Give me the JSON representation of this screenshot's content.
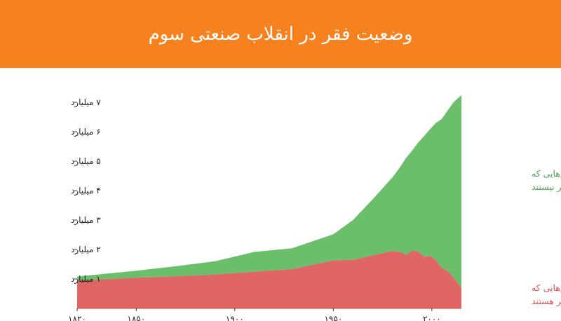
{
  "header": {
    "title": "وضعیت فقر در انقلاب صنعتی سوم"
  },
  "colors": {
    "header": "#f5821f",
    "not_poor": "#6bbf6b",
    "poor": "#e06666",
    "axis": "#222222"
  },
  "chart_data": {
    "type": "area",
    "stacked": true,
    "title": "وضعیت فقر در انقلاب صنعتی سوم",
    "x": [
      1820,
      1850,
      1870,
      1890,
      1910,
      1929,
      1950,
      1960,
      1970,
      1980,
      1984,
      1987,
      1990,
      1993,
      1996,
      1999,
      2002,
      2005,
      2008,
      2011,
      2015
    ],
    "series": [
      {
        "name": "تعداد آدم‌هایی که فقیر هستند",
        "values": [
          0.94,
          1.04,
          1.09,
          1.15,
          1.25,
          1.33,
          1.63,
          1.65,
          1.8,
          1.95,
          1.91,
          1.82,
          1.96,
          1.93,
          1.75,
          1.78,
          1.65,
          1.38,
          1.27,
          1.05,
          0.7
        ]
      },
      {
        "name": "تعداد آدم‌هایی که فقیر نیستند",
        "values": [
          0.14,
          0.24,
          0.34,
          0.45,
          0.67,
          0.71,
          0.89,
          1.35,
          1.91,
          2.5,
          2.9,
          3.3,
          3.4,
          3.7,
          4.1,
          4.3,
          4.65,
          5.05,
          5.45,
          5.95,
          6.55
        ]
      }
    ],
    "x_ticks": [
      {
        "value": 1820,
        "label": "۱۸۲۰"
      },
      {
        "value": 1850,
        "label": "۱۸۵۰"
      },
      {
        "value": 1900,
        "label": "۱۹۰۰"
      },
      {
        "value": 1950,
        "label": "۱۹۵۰"
      },
      {
        "value": 2000,
        "label": "۲۰۰۰"
      }
    ],
    "y_ticks": [
      {
        "value": 1,
        "label": "۱ میلیارد"
      },
      {
        "value": 2,
        "label": "۲ میلیارد"
      },
      {
        "value": 3,
        "label": "۳ میلیارد"
      },
      {
        "value": 4,
        "label": "۴ میلیارد"
      },
      {
        "value": 5,
        "label": "۵ میلیارد"
      },
      {
        "value": 6,
        "label": "۶ میلیارد"
      },
      {
        "value": 7,
        "label": "۷ میلیارد"
      }
    ],
    "xlim": [
      1820,
      2015
    ],
    "ylim": [
      0,
      7.4
    ],
    "legend": {
      "placement": "right",
      "not_poor_lines": [
        "تعداد آدم‌هایی که",
        "فقیر نیستند"
      ],
      "poor_lines": [
        "تعداد آدم‌هایی که",
        "فقیر هستند"
      ]
    },
    "grid": false
  }
}
